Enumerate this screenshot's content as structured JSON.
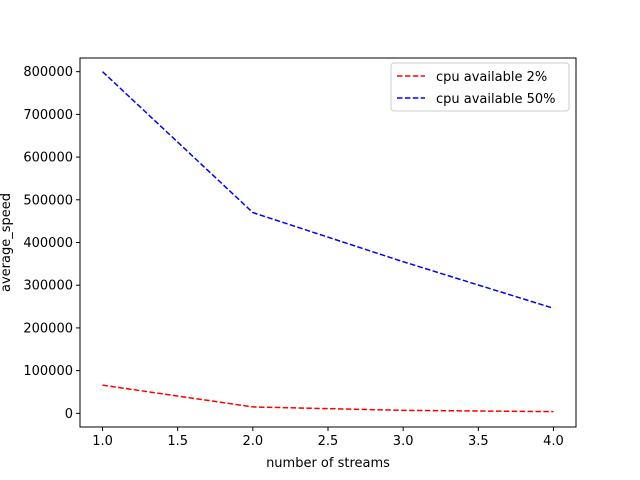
{
  "chart_data": {
    "type": "line",
    "title": "",
    "xlabel": "number of streams",
    "ylabel": "average_speed",
    "x": [
      1.0,
      2.0,
      3.0,
      4.0
    ],
    "series": [
      {
        "name": "cpu available 2%",
        "values": [
          66000,
          15000,
          7000,
          4000
        ],
        "color": "#ff0000",
        "linestyle": "dashed"
      },
      {
        "name": "cpu available 50%",
        "values": [
          800000,
          470000,
          355000,
          246000
        ],
        "color": "#0000ff",
        "linestyle": "dashed"
      }
    ],
    "xlim": [
      0.85,
      4.15
    ],
    "ylim": [
      -32000,
      832000
    ],
    "xticks": [
      1.0,
      1.5,
      2.0,
      2.5,
      3.0,
      3.5,
      4.0
    ],
    "xtick_labels": [
      "1.0",
      "1.5",
      "2.0",
      "2.5",
      "3.0",
      "3.5",
      "4.0"
    ],
    "yticks": [
      0,
      100000,
      200000,
      300000,
      400000,
      500000,
      600000,
      700000,
      800000
    ],
    "ytick_labels": [
      "0",
      "100000",
      "200000",
      "300000",
      "400000",
      "500000",
      "600000",
      "700000",
      "800000"
    ],
    "grid": false,
    "legend_position": "top-right"
  }
}
